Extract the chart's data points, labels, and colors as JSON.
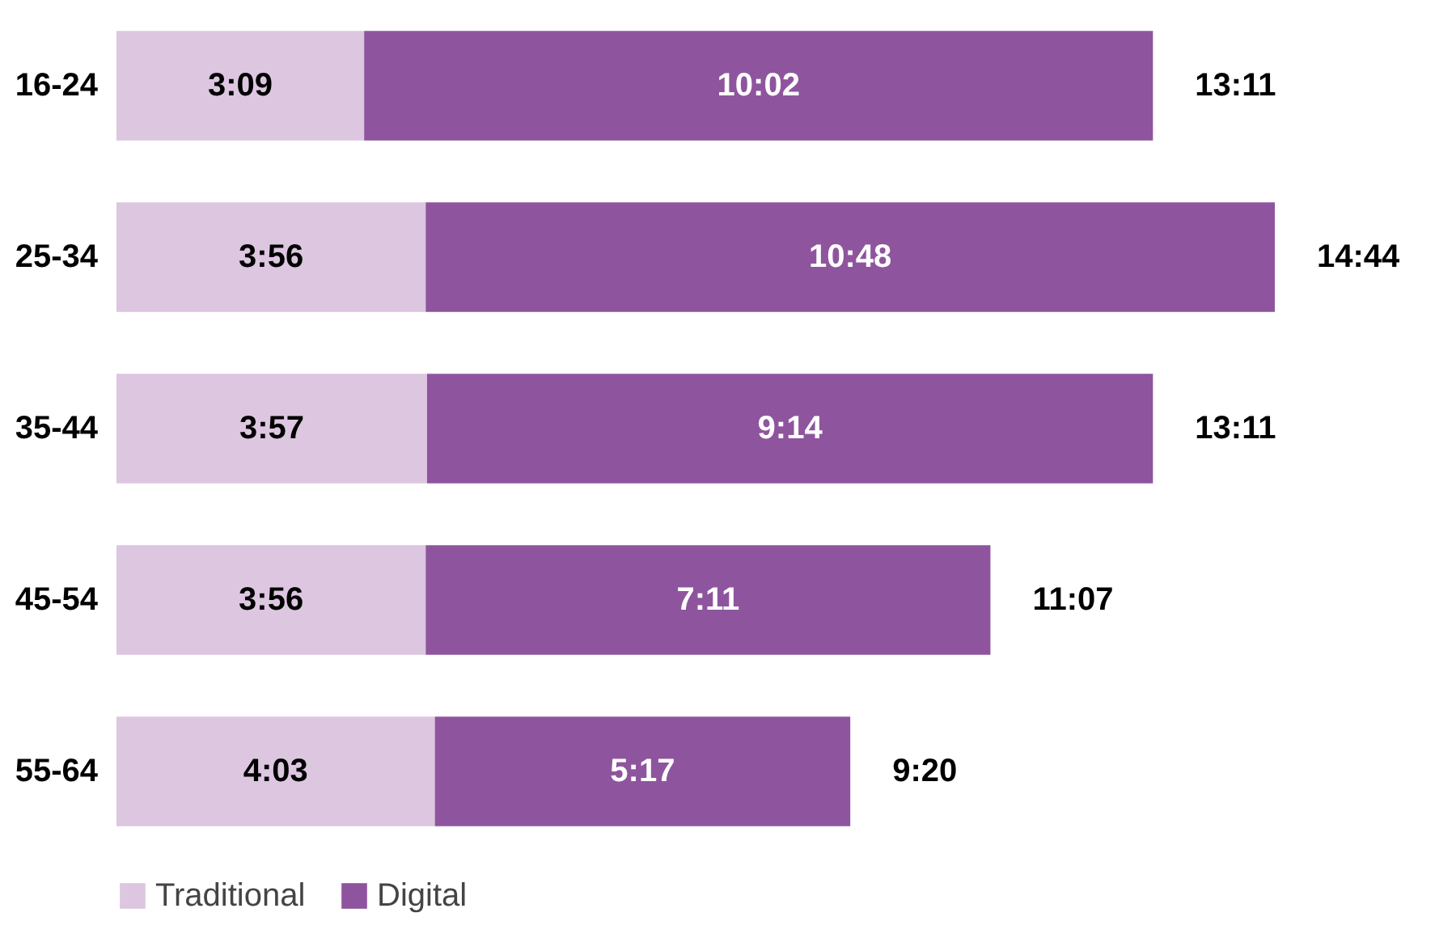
{
  "chart_data": {
    "type": "bar",
    "orientation": "horizontal",
    "stacked": true,
    "legend": "bottom",
    "categories": [
      "16-24",
      "25-34",
      "35-44",
      "45-54",
      "55-64"
    ],
    "series": [
      {
        "name": "Traditional",
        "color": "#dcc6e0",
        "values": [
          3.15,
          3.933,
          3.95,
          3.933,
          4.05
        ],
        "value_labels": [
          "3:09",
          "3:56",
          "3:57",
          "3:56",
          "4:03"
        ]
      },
      {
        "name": "Digital",
        "color": "#8e559e",
        "values": [
          10.033,
          10.8,
          9.233,
          7.183,
          5.283
        ],
        "value_labels": [
          "10:02",
          "10:48",
          "9:14",
          "7:11",
          "5:17"
        ]
      }
    ],
    "totals": [
      "13:11",
      "14:44",
      "13:11",
      "11:07",
      "9:20"
    ]
  }
}
